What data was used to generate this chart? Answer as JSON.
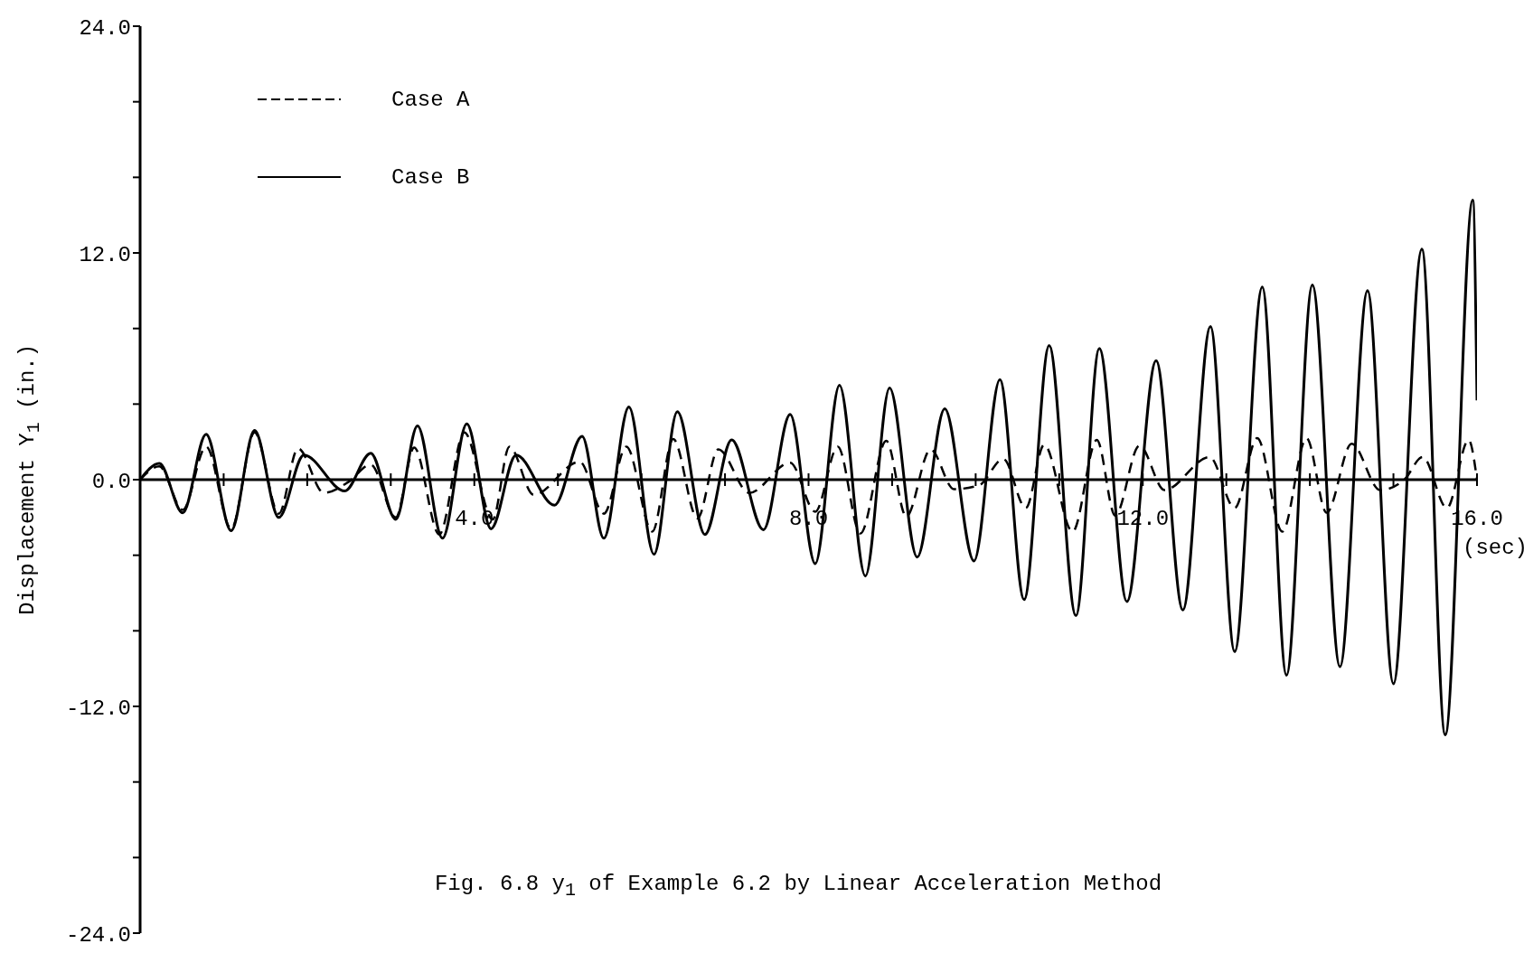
{
  "chart_data": {
    "type": "line",
    "title": "Fig. 6.8  y$_{1}$ of Example 6.2 by Linear Acceleration Method",
    "xlabel": "(sec)",
    "ylabel": "Displacement Y$_{1}$ (in.)",
    "xlim": [
      0,
      16
    ],
    "xticks": [
      {
        "value": 0,
        "label": null
      },
      {
        "value": 1,
        "label": null
      },
      {
        "value": 2,
        "label": null
      },
      {
        "value": 3,
        "label": null
      },
      {
        "value": 4,
        "label": "4.0"
      },
      {
        "value": 5,
        "label": null
      },
      {
        "value": 6,
        "label": null
      },
      {
        "value": 7,
        "label": null
      },
      {
        "value": 8,
        "label": "8.0"
      },
      {
        "value": 9,
        "label": null
      },
      {
        "value": 10,
        "label": null
      },
      {
        "value": 11,
        "label": null
      },
      {
        "value": 12,
        "label": "12.0"
      },
      {
        "value": 13,
        "label": null
      },
      {
        "value": 14,
        "label": null
      },
      {
        "value": 15,
        "label": null
      },
      {
        "value": 16,
        "label": "16.0"
      }
    ],
    "ylim": [
      -24,
      24
    ],
    "yticks": [
      {
        "value": -24,
        "label": "-24.0"
      },
      {
        "value": -20,
        "label": null
      },
      {
        "value": -16,
        "label": null
      },
      {
        "value": -12,
        "label": "-12.0"
      },
      {
        "value": -8,
        "label": null
      },
      {
        "value": -4,
        "label": null
      },
      {
        "value": 0,
        "label": "0.0"
      },
      {
        "value": 4,
        "label": null
      },
      {
        "value": 8,
        "label": null
      },
      {
        "value": 12,
        "label": "12.0"
      },
      {
        "value": 16,
        "label": null
      },
      {
        "value": 20,
        "label": null
      },
      {
        "value": 24,
        "label": "24.0"
      }
    ],
    "legend": "top left",
    "series": [
      {
        "name": "Case A",
        "color": "#000000",
        "line_style": "dashed",
        "x": [
          0,
          0.23,
          0.51,
          0.79,
          1.09,
          1.37,
          1.66,
          1.89,
          2.2,
          2.5,
          2.76,
          3.06,
          3.28,
          3.58,
          3.88,
          4.22,
          4.42,
          4.71,
          5.26,
          5.55,
          5.82,
          6.13,
          6.38,
          6.67,
          6.92,
          7.29,
          7.78,
          8.08,
          8.35,
          8.62,
          8.93,
          9.17,
          9.46,
          9.74,
          10.04,
          10.33,
          10.6,
          10.82,
          11.16,
          11.45,
          11.67,
          11.96,
          12.26,
          12.8,
          13.1,
          13.37,
          13.67,
          13.96,
          14.2,
          14.5,
          14.84,
          15.13,
          15.35,
          15.64,
          15.9,
          16.0
        ],
        "values": [
          0,
          0.7,
          -1.6,
          1.75,
          -2.6,
          2.5,
          -1.8,
          1.65,
          -0.7,
          -0.1,
          0.8,
          -2.0,
          1.7,
          -2.9,
          2.5,
          -2.1,
          1.75,
          -0.8,
          0.95,
          -1.8,
          1.75,
          -2.75,
          2.15,
          -2.05,
          1.6,
          -0.7,
          0.9,
          -1.7,
          1.75,
          -2.85,
          2.05,
          -1.95,
          1.6,
          -0.5,
          -0.3,
          1.1,
          -1.5,
          1.85,
          -2.75,
          2.1,
          -1.9,
          1.8,
          -0.55,
          1.2,
          -1.5,
          2.2,
          -2.75,
          2.2,
          -1.75,
          1.9,
          -0.55,
          0,
          1.2,
          -1.5,
          2.1,
          0
        ]
      },
      {
        "name": "Case B",
        "color": "#000000",
        "line_style": "solid",
        "x": [
          0,
          0.23,
          0.51,
          0.79,
          1.09,
          1.37,
          1.66,
          1.96,
          2.45,
          2.76,
          3.06,
          3.32,
          3.62,
          3.91,
          4.2,
          4.5,
          4.96,
          5.29,
          5.55,
          5.85,
          6.15,
          6.43,
          6.76,
          7.08,
          7.46,
          7.78,
          8.08,
          8.37,
          8.68,
          8.97,
          9.3,
          9.63,
          9.98,
          10.29,
          10.58,
          10.88,
          11.2,
          11.48,
          11.81,
          12.16,
          12.48,
          12.81,
          13.1,
          13.43,
          13.72,
          14.03,
          14.36,
          14.69,
          15.0,
          15.34,
          15.62,
          15.95,
          16.0
        ],
        "values": [
          0,
          0.86,
          -1.76,
          2.4,
          -2.7,
          2.6,
          -2.0,
          1.3,
          -0.6,
          1.4,
          -2.1,
          2.85,
          -3.1,
          2.95,
          -2.6,
          1.3,
          -1.35,
          2.3,
          -3.1,
          3.85,
          -3.95,
          3.6,
          -2.9,
          2.1,
          -2.65,
          3.45,
          -4.45,
          5.0,
          -5.1,
          4.85,
          -4.1,
          3.75,
          -4.3,
          5.3,
          -6.35,
          7.1,
          -7.2,
          6.95,
          -6.45,
          6.3,
          -6.9,
          8.1,
          -9.1,
          10.2,
          -10.35,
          10.3,
          -9.9,
          10.0,
          -10.8,
          12.2,
          -13.5,
          14.8,
          4.2
        ]
      }
    ]
  }
}
